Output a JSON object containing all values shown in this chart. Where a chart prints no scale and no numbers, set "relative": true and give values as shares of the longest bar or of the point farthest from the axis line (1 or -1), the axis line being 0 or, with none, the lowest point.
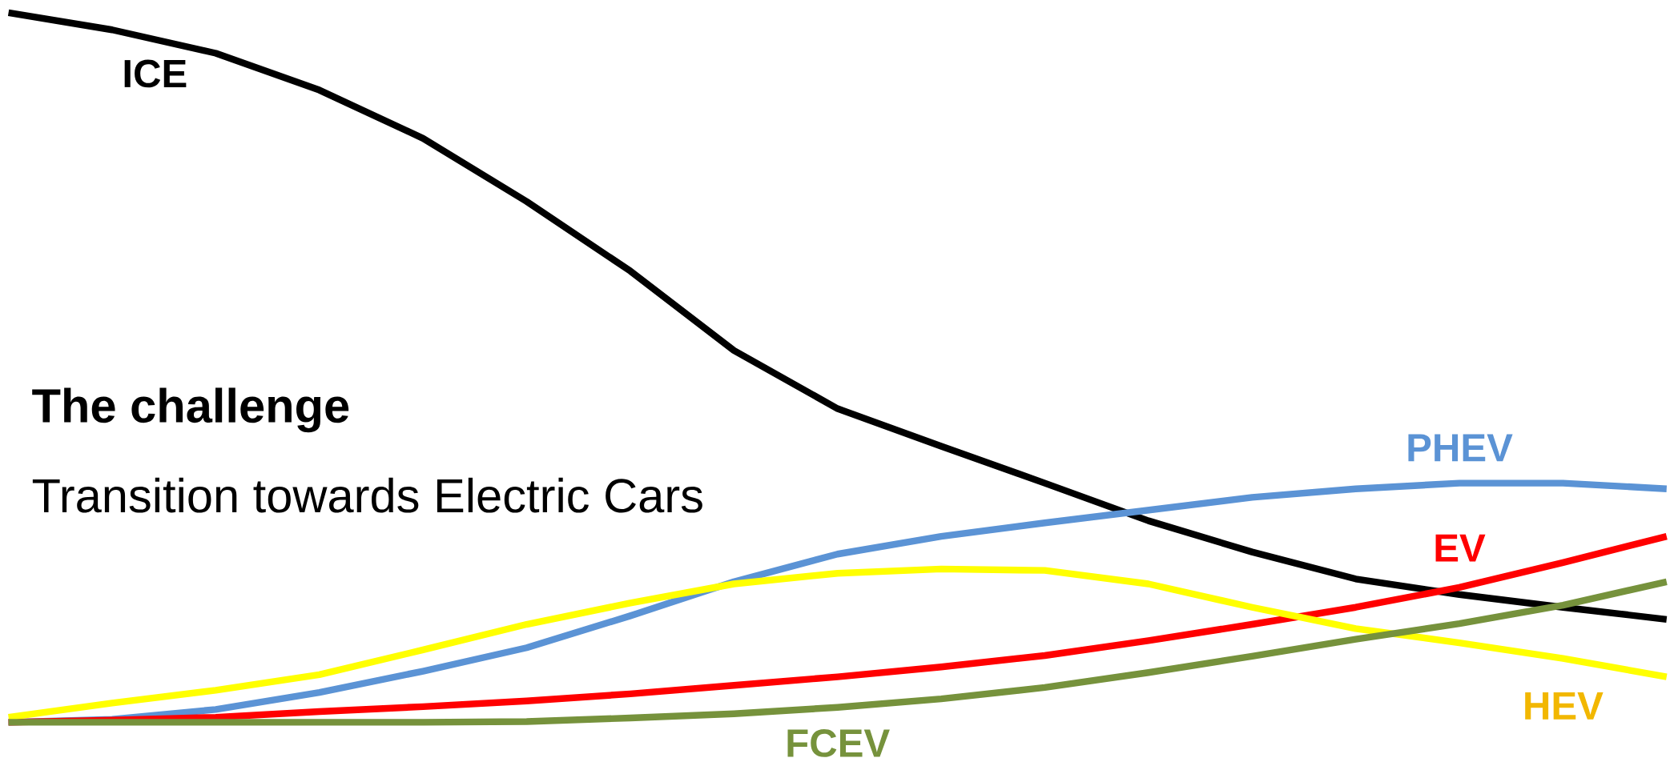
{
  "chart_data": {
    "type": "line",
    "title": "The challenge",
    "subtitle": "Transition towards Electric Cars",
    "relative": true,
    "categories": [
      null,
      null,
      null,
      null,
      null,
      null,
      null,
      null,
      null,
      null,
      null,
      null,
      null,
      null,
      null,
      null,
      null
    ],
    "series": [
      {
        "name": "ICE",
        "color": "#000000",
        "values": [
          1.0,
          0.976,
          0.943,
          0.891,
          0.823,
          0.734,
          0.636,
          0.524,
          0.442,
          0.389,
          0.337,
          0.284,
          0.24,
          0.202,
          0.18,
          0.162,
          0.145
        ]
      },
      {
        "name": "PHEV",
        "color": "#5b93d5",
        "values": [
          0,
          0.004,
          0.018,
          0.042,
          0.072,
          0.105,
          0.15,
          0.198,
          0.237,
          0.262,
          0.281,
          0.299,
          0.317,
          0.329,
          0.337,
          0.337,
          0.329
        ]
      },
      {
        "name": "EV",
        "color": "#ff0000",
        "values": [
          0,
          0.003,
          0.007,
          0.015,
          0.022,
          0.03,
          0.04,
          0.052,
          0.064,
          0.078,
          0.094,
          0.115,
          0.138,
          0.162,
          0.19,
          0.225,
          0.262
        ]
      },
      {
        "name": "HEV",
        "color": "#ffff00",
        "values": [
          0.007,
          0.027,
          0.045,
          0.067,
          0.102,
          0.138,
          0.168,
          0.195,
          0.21,
          0.216,
          0.214,
          0.195,
          0.162,
          0.132,
          0.112,
          0.09,
          0.064
        ]
      },
      {
        "name": "FCEV",
        "color": "#76923c",
        "values": [
          0,
          0,
          0,
          0,
          0,
          0.001,
          0.006,
          0.012,
          0.021,
          0.033,
          0.049,
          0.07,
          0.093,
          0.117,
          0.139,
          0.165,
          0.198
        ]
      }
    ]
  }
}
